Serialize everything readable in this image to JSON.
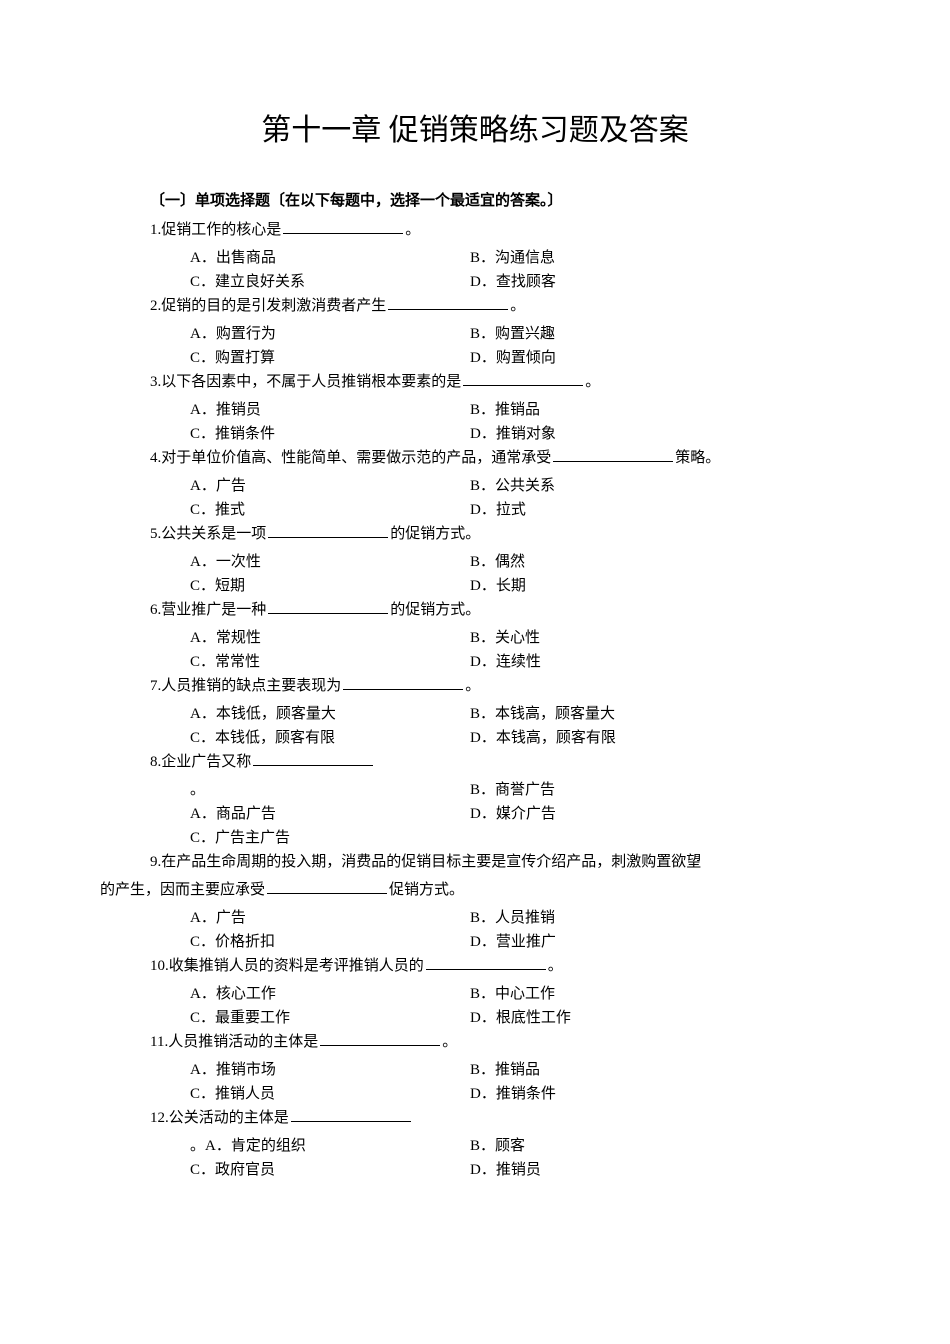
{
  "colors": {
    "background": "#ffffff",
    "text": "#000000",
    "blank_line": "#000000"
  },
  "typography": {
    "title_fontsize": 30,
    "body_fontsize": 15,
    "font_family": "SimSun"
  },
  "title": "第十一章  促销策略练习题及答案",
  "section_header": "〔一〕单项选择题〔在以下每题中，选择一个最适宜的答案。〕",
  "questions": [
    {
      "num": "1.",
      "text_before": "促销工作的核心是",
      "text_after": "。",
      "options": [
        {
          "label": "A．",
          "text": "出售商品"
        },
        {
          "label": "B．",
          "text": "沟通信息"
        },
        {
          "label": "C．",
          "text": "建立良好关系"
        },
        {
          "label": "D．",
          "text": "查找顾客"
        }
      ]
    },
    {
      "num": "2.",
      "text_before": "促销的目的是引发刺激消费者产生",
      "text_after": "。",
      "options": [
        {
          "label": "A．",
          "text": "购置行为"
        },
        {
          "label": "B．",
          "text": "购置兴趣"
        },
        {
          "label": "C．",
          "text": "购置打算"
        },
        {
          "label": "D．",
          "text": "购置倾向"
        }
      ]
    },
    {
      "num": "3.",
      "text_before": "以下各因素中，不属于人员推销根本要素的是",
      "text_after": "。",
      "options": [
        {
          "label": "A．",
          "text": "推销员"
        },
        {
          "label": "B．",
          "text": "推销品"
        },
        {
          "label": "C．",
          "text": "推销条件"
        },
        {
          "label": "D．",
          "text": "推销对象"
        }
      ]
    },
    {
      "num": "4.",
      "text_before": "对于单位价值高、性能简单、需要做示范的产品，通常承受",
      "text_after": "策略。",
      "options": [
        {
          "label": "A．",
          "text": "广告"
        },
        {
          "label": "B．",
          "text": "公共关系"
        },
        {
          "label": "C．",
          "text": "推式"
        },
        {
          "label": "D．",
          "text": "拉式"
        }
      ]
    },
    {
      "num": "5.",
      "text_before": "公共关系是一项",
      "text_after": "的促销方式。",
      "options": [
        {
          "label": "A．",
          "text": "一次性"
        },
        {
          "label": "B．",
          "text": "偶然"
        },
        {
          "label": "C．",
          "text": "短期"
        },
        {
          "label": "D．",
          "text": "长期"
        }
      ]
    },
    {
      "num": "6.",
      "text_before": "营业推广是一种",
      "text_after": "的促销方式。",
      "options": [
        {
          "label": "A．",
          "text": "常规性"
        },
        {
          "label": "B．",
          "text": "关心性"
        },
        {
          "label": "C．",
          "text": "常常性"
        },
        {
          "label": "D．",
          "text": "连续性"
        }
      ]
    },
    {
      "num": "7.",
      "text_before": "人员推销的缺点主要表现为",
      "text_after": "。",
      "options": [
        {
          "label": "A．",
          "text": "本钱低，顾客量大"
        },
        {
          "label": "B．",
          "text": "本钱高，顾客量大"
        },
        {
          "label": "C．",
          "text": "本钱低，顾客有限"
        },
        {
          "label": "D．",
          "text": "本钱高，顾客有限"
        }
      ]
    },
    {
      "num": "8.",
      "text_before": "企业广告又称",
      "text_after": "",
      "options": [
        {
          "label": "",
          "text": "。"
        },
        {
          "label": "B．",
          "text": "商誉广告"
        },
        {
          "label": "A．",
          "text": "商品广告"
        },
        {
          "label": "D．",
          "text": "媒介广告"
        },
        {
          "label": "C．",
          "text": "广告主广告"
        },
        {
          "label": "",
          "text": ""
        }
      ],
      "special": true
    },
    {
      "num": "9.",
      "text_before": "在产品生命周期的投入期，消费品的促销目标主要是宣传介绍产品，刺激购置欲望",
      "text_after": "",
      "continuation": "的产生，因而主要应承受",
      "continuation_after": "促销方式。",
      "options": [
        {
          "label": "A．",
          "text": "广告"
        },
        {
          "label": "B．",
          "text": "人员推销"
        },
        {
          "label": "C．",
          "text": "价格折扣"
        },
        {
          "label": "D．",
          "text": "营业推广"
        }
      ]
    },
    {
      "num": "10.",
      "text_before": "收集推销人员的资料是考评推销人员的",
      "text_after": "。",
      "options": [
        {
          "label": "A．",
          "text": "核心工作"
        },
        {
          "label": "B．",
          "text": "中心工作"
        },
        {
          "label": "C．",
          "text": "最重要工作"
        },
        {
          "label": "D．",
          "text": "根底性工作"
        }
      ]
    },
    {
      "num": "11.",
      "text_before": "人员推销活动的主体是",
      "text_after": "。",
      "options": [
        {
          "label": "A．",
          "text": "推销市场"
        },
        {
          "label": "B．",
          "text": "推销品"
        },
        {
          "label": "C．",
          "text": "推销人员"
        },
        {
          "label": "D．",
          "text": "推销条件"
        }
      ]
    },
    {
      "num": "12.",
      "text_before": "公关活动的主体是",
      "text_after": "",
      "options": [
        {
          "label": "。A．",
          "text": "肯定的组织"
        },
        {
          "label": "B．",
          "text": "顾客"
        },
        {
          "label": "C．",
          "text": "政府官员"
        },
        {
          "label": "D．",
          "text": "推销员"
        }
      ]
    }
  ]
}
